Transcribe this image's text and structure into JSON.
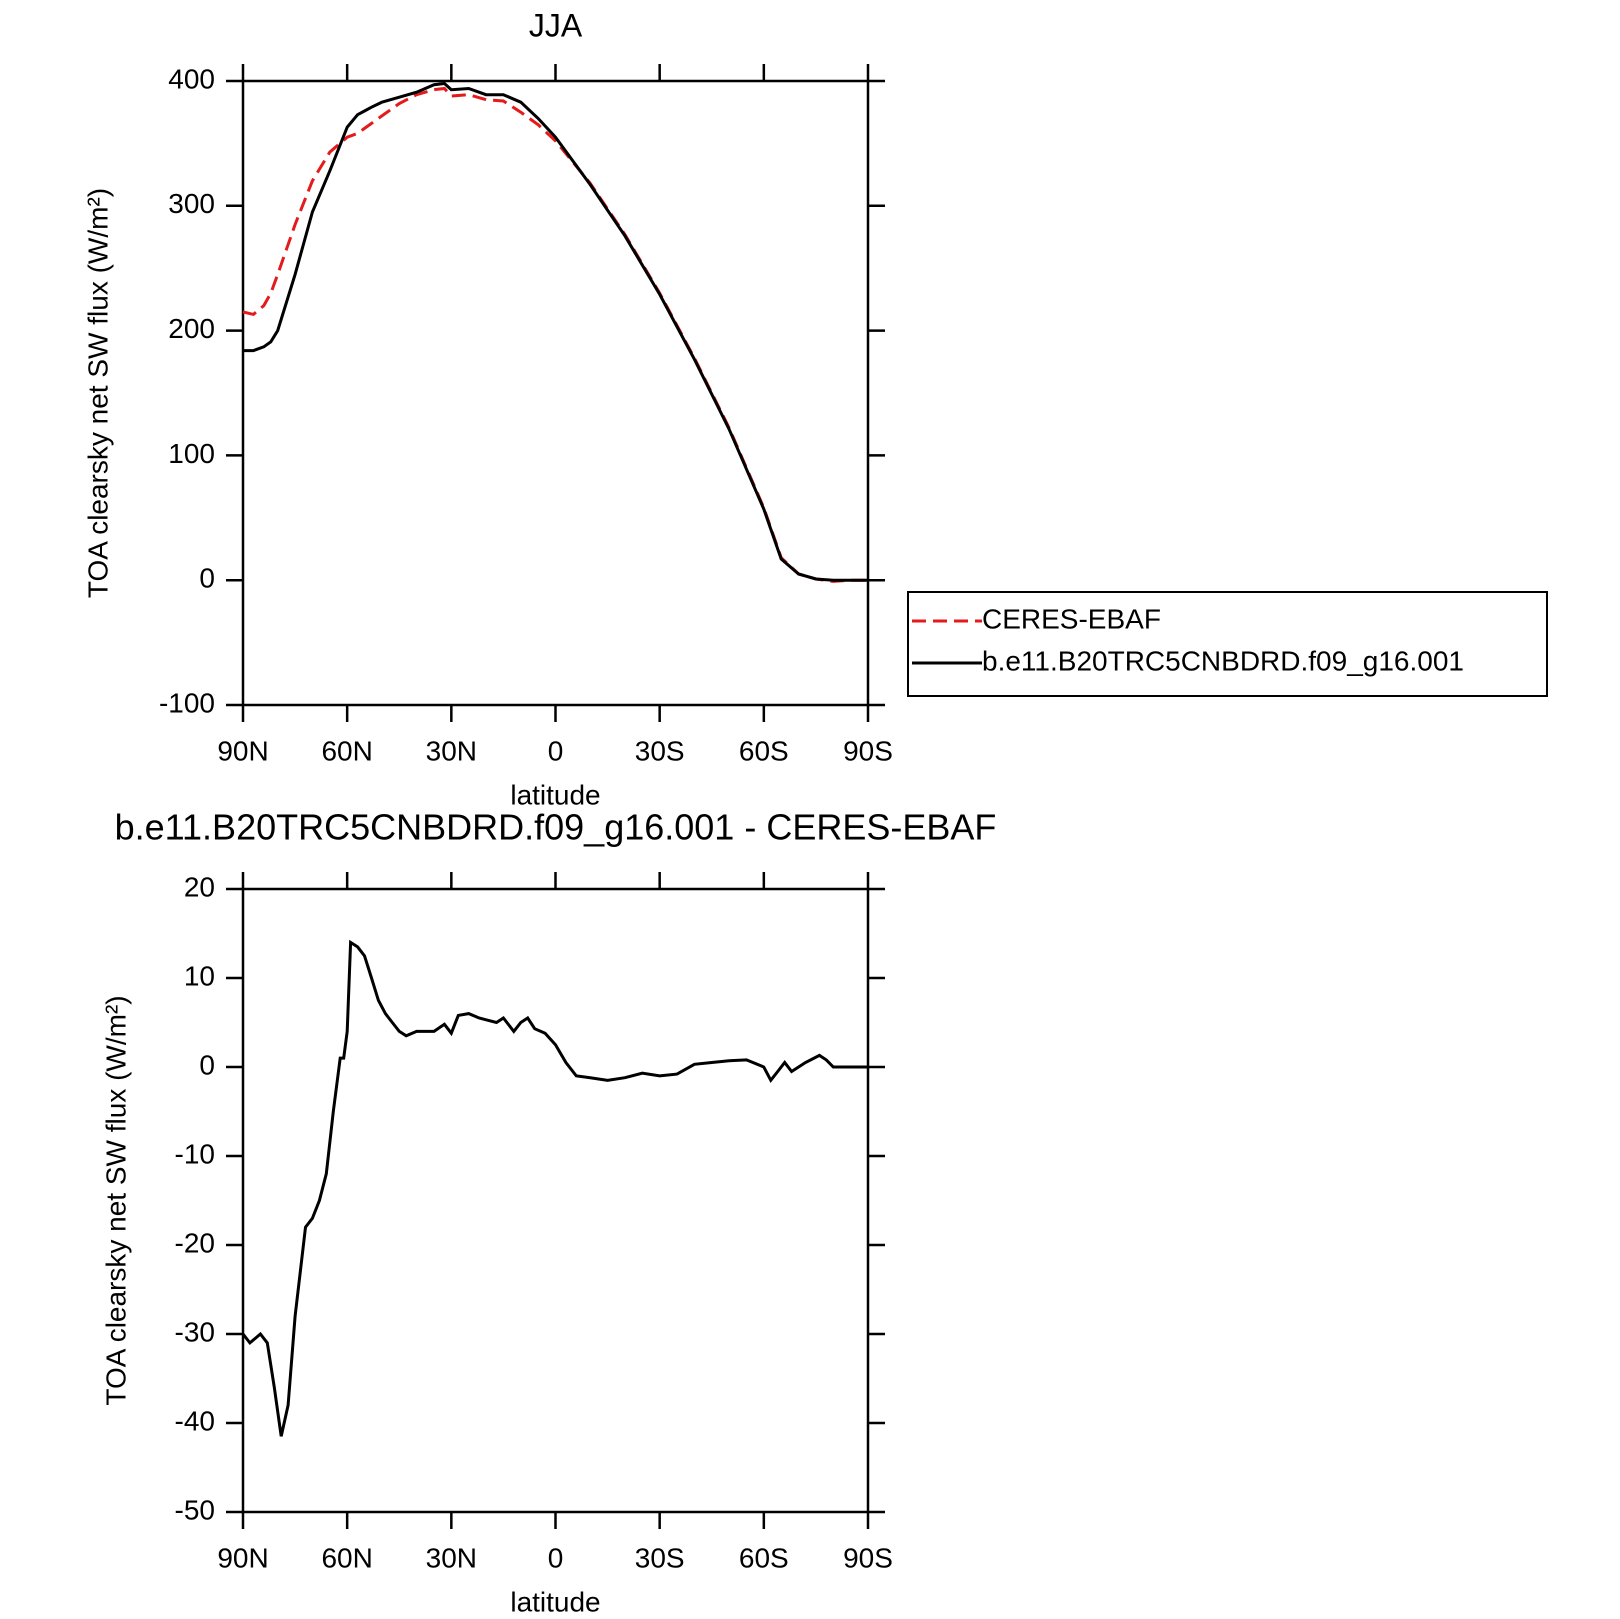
{
  "chart_data": [
    {
      "type": "line",
      "title": "JJA",
      "x_label": "latitude",
      "y_label": "TOA clearsky net SW flux (W/m²)",
      "x": [
        90,
        87,
        84,
        82,
        80,
        75,
        70,
        65,
        60,
        57,
        55,
        53,
        50,
        45,
        40,
        35,
        32,
        30,
        25,
        20,
        15,
        10,
        5,
        0,
        -10,
        -20,
        -30,
        -40,
        -50,
        -60,
        -65,
        -70,
        -75,
        -80,
        -85,
        -90
      ],
      "series": [
        {
          "name": "CERES-EBAF",
          "color": "#e41a1c",
          "dash": "dashed",
          "values": [
            215,
            213,
            220,
            230,
            245,
            285,
            320,
            343,
            355,
            358,
            362,
            366,
            372,
            382,
            389,
            393,
            394,
            388,
            389,
            385,
            384,
            375,
            365,
            352,
            318,
            277,
            230,
            178,
            122,
            58,
            18,
            5,
            1,
            -1,
            0,
            0
          ]
        },
        {
          "name": "b.e11.B20TRC5CNBDRD.f09_g16.001",
          "color": "#000000",
          "dash": "solid",
          "values": [
            184,
            184,
            187,
            191,
            200,
            245,
            295,
            328,
            363,
            373,
            376,
            379,
            383,
            387,
            391,
            397,
            398,
            393,
            394,
            389,
            389,
            383,
            370,
            355,
            317,
            276,
            229,
            177,
            121,
            57,
            17,
            5,
            1,
            0,
            0,
            0
          ]
        }
      ],
      "xlim": [
        90,
        -90
      ],
      "xticks": [
        {
          "value": 90,
          "label": "90N"
        },
        {
          "value": 60,
          "label": "60N"
        },
        {
          "value": 30,
          "label": "30N"
        },
        0,
        {
          "value": -30,
          "label": "30S"
        },
        {
          "value": -60,
          "label": "60S"
        },
        {
          "value": -90,
          "label": "90S"
        }
      ],
      "ylim": [
        -100,
        400
      ],
      "yticks": [
        -100,
        0,
        100,
        200,
        300,
        400
      ],
      "legend": "right"
    },
    {
      "type": "line",
      "title": "b.e11.B20TRC5CNBDRD.f09_g16.001 - CERES-EBAF",
      "x_label": "latitude",
      "y_label": "TOA clearsky net SW flux (W/m²)",
      "x": [
        90,
        88,
        85,
        83,
        81,
        79,
        77,
        75,
        72,
        70,
        68,
        66,
        64,
        62,
        61,
        60,
        59,
        57,
        55,
        53,
        51,
        49,
        47,
        45,
        43,
        40,
        35,
        32,
        30,
        28,
        25,
        22,
        20,
        17,
        15,
        12,
        10,
        8,
        6,
        3,
        0,
        -3,
        -6,
        -10,
        -15,
        -20,
        -25,
        -30,
        -35,
        -40,
        -45,
        -50,
        -55,
        -60,
        -62,
        -64,
        -66,
        -68,
        -72,
        -76,
        -78,
        -80,
        -85,
        -90
      ],
      "series": [
        {
          "name": "b.e11.B20TRC5CNBDRD.f09_g16.001 - CERES-EBAF",
          "color": "#000000",
          "dash": "solid",
          "values": [
            -30,
            -31,
            -30,
            -31,
            -36,
            -41.5,
            -38,
            -28,
            -18,
            -17,
            -15,
            -12,
            -5,
            1,
            1,
            4,
            14,
            13.5,
            12.5,
            10,
            7.5,
            6,
            5,
            4,
            3.5,
            4,
            4,
            4.8,
            3.8,
            5.8,
            6,
            5.5,
            5.3,
            5,
            5.5,
            4,
            5,
            5.5,
            4.3,
            3.8,
            2.5,
            0.5,
            -1,
            -1.2,
            -1.5,
            -1.2,
            -0.7,
            -1,
            -0.8,
            0.3,
            0.5,
            0.7,
            0.8,
            0,
            -1.5,
            -0.5,
            0.5,
            -0.5,
            0.5,
            1.3,
            0.8,
            0,
            0,
            0
          ]
        }
      ],
      "xlim": [
        90,
        -90
      ],
      "xticks": [
        {
          "value": 90,
          "label": "90N"
        },
        {
          "value": 60,
          "label": "60N"
        },
        {
          "value": 30,
          "label": "30N"
        },
        0,
        {
          "value": -30,
          "label": "30S"
        },
        {
          "value": -60,
          "label": "60S"
        },
        {
          "value": -90,
          "label": "90S"
        }
      ],
      "ylim": [
        -50,
        20
      ],
      "yticks": [
        -50,
        -40,
        -30,
        -20,
        -10,
        0,
        10,
        20
      ]
    }
  ]
}
